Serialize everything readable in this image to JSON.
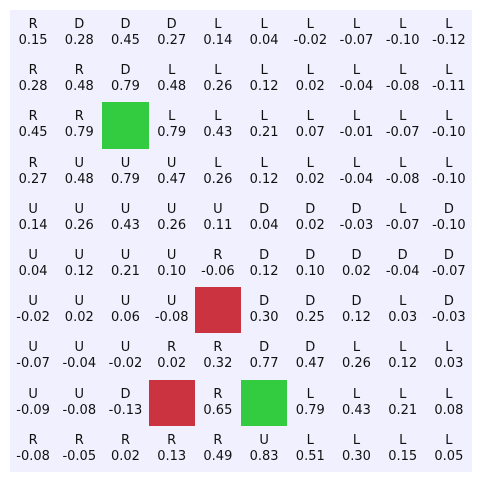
{
  "colors": {
    "background": "#f0f0fe",
    "goal": "#33cc40",
    "hazard": "#cc3340",
    "text": "#111111"
  },
  "grid": {
    "rows": 10,
    "cols": 10,
    "cells": [
      [
        {
          "a": "R",
          "v": "0.15"
        },
        {
          "a": "D",
          "v": "0.28"
        },
        {
          "a": "D",
          "v": "0.45"
        },
        {
          "a": "D",
          "v": "0.27"
        },
        {
          "a": "L",
          "v": "0.14"
        },
        {
          "a": "L",
          "v": "0.04"
        },
        {
          "a": "L",
          "v": "-0.02"
        },
        {
          "a": "L",
          "v": "-0.07"
        },
        {
          "a": "L",
          "v": "-0.10"
        },
        {
          "a": "L",
          "v": "-0.12"
        }
      ],
      [
        {
          "a": "R",
          "v": "0.28"
        },
        {
          "a": "R",
          "v": "0.48"
        },
        {
          "a": "D",
          "v": "0.79"
        },
        {
          "a": "L",
          "v": "0.48"
        },
        {
          "a": "L",
          "v": "0.26"
        },
        {
          "a": "L",
          "v": "0.12"
        },
        {
          "a": "L",
          "v": "0.02"
        },
        {
          "a": "L",
          "v": "-0.04"
        },
        {
          "a": "L",
          "v": "-0.08"
        },
        {
          "a": "L",
          "v": "-0.11"
        }
      ],
      [
        {
          "a": "R",
          "v": "0.45"
        },
        {
          "a": "R",
          "v": "0.79"
        },
        {
          "type": "goal"
        },
        {
          "a": "L",
          "v": "0.79"
        },
        {
          "a": "L",
          "v": "0.43"
        },
        {
          "a": "L",
          "v": "0.21"
        },
        {
          "a": "L",
          "v": "0.07"
        },
        {
          "a": "L",
          "v": "-0.01"
        },
        {
          "a": "L",
          "v": "-0.07"
        },
        {
          "a": "L",
          "v": "-0.10"
        }
      ],
      [
        {
          "a": "R",
          "v": "0.27"
        },
        {
          "a": "U",
          "v": "0.48"
        },
        {
          "a": "U",
          "v": "0.79"
        },
        {
          "a": "U",
          "v": "0.47"
        },
        {
          "a": "L",
          "v": "0.26"
        },
        {
          "a": "L",
          "v": "0.12"
        },
        {
          "a": "L",
          "v": "0.02"
        },
        {
          "a": "L",
          "v": "-0.04"
        },
        {
          "a": "L",
          "v": "-0.08"
        },
        {
          "a": "L",
          "v": "-0.10"
        }
      ],
      [
        {
          "a": "U",
          "v": "0.14"
        },
        {
          "a": "U",
          "v": "0.26"
        },
        {
          "a": "U",
          "v": "0.43"
        },
        {
          "a": "U",
          "v": "0.26"
        },
        {
          "a": "U",
          "v": "0.11"
        },
        {
          "a": "D",
          "v": "0.04"
        },
        {
          "a": "D",
          "v": "0.02"
        },
        {
          "a": "D",
          "v": "-0.03"
        },
        {
          "a": "L",
          "v": "-0.07"
        },
        {
          "a": "D",
          "v": "-0.10"
        }
      ],
      [
        {
          "a": "U",
          "v": "0.04"
        },
        {
          "a": "U",
          "v": "0.12"
        },
        {
          "a": "U",
          "v": "0.21"
        },
        {
          "a": "U",
          "v": "0.10"
        },
        {
          "a": "R",
          "v": "-0.06"
        },
        {
          "a": "D",
          "v": "0.12"
        },
        {
          "a": "D",
          "v": "0.10"
        },
        {
          "a": "D",
          "v": "0.02"
        },
        {
          "a": "D",
          "v": "-0.04"
        },
        {
          "a": "D",
          "v": "-0.07"
        }
      ],
      [
        {
          "a": "U",
          "v": "-0.02"
        },
        {
          "a": "U",
          "v": "0.02"
        },
        {
          "a": "U",
          "v": "0.06"
        },
        {
          "a": "U",
          "v": "-0.08"
        },
        {
          "type": "hazard"
        },
        {
          "a": "D",
          "v": "0.30"
        },
        {
          "a": "D",
          "v": "0.25"
        },
        {
          "a": "D",
          "v": "0.12"
        },
        {
          "a": "L",
          "v": "0.03"
        },
        {
          "a": "D",
          "v": "-0.03"
        }
      ],
      [
        {
          "a": "U",
          "v": "-0.07"
        },
        {
          "a": "U",
          "v": "-0.04"
        },
        {
          "a": "U",
          "v": "-0.02"
        },
        {
          "a": "R",
          "v": "0.02"
        },
        {
          "a": "R",
          "v": "0.32"
        },
        {
          "a": "D",
          "v": "0.77"
        },
        {
          "a": "D",
          "v": "0.47"
        },
        {
          "a": "L",
          "v": "0.26"
        },
        {
          "a": "L",
          "v": "0.12"
        },
        {
          "a": "L",
          "v": "0.03"
        }
      ],
      [
        {
          "a": "U",
          "v": "-0.09"
        },
        {
          "a": "U",
          "v": "-0.08"
        },
        {
          "a": "D",
          "v": "-0.13"
        },
        {
          "type": "hazard"
        },
        {
          "a": "R",
          "v": "0.65"
        },
        {
          "type": "goal"
        },
        {
          "a": "L",
          "v": "0.79"
        },
        {
          "a": "L",
          "v": "0.43"
        },
        {
          "a": "L",
          "v": "0.21"
        },
        {
          "a": "L",
          "v": "0.08"
        }
      ],
      [
        {
          "a": "R",
          "v": "-0.08"
        },
        {
          "a": "R",
          "v": "-0.05"
        },
        {
          "a": "R",
          "v": "0.02"
        },
        {
          "a": "R",
          "v": "0.13"
        },
        {
          "a": "R",
          "v": "0.49"
        },
        {
          "a": "U",
          "v": "0.83"
        },
        {
          "a": "L",
          "v": "0.51"
        },
        {
          "a": "L",
          "v": "0.30"
        },
        {
          "a": "L",
          "v": "0.15"
        },
        {
          "a": "L",
          "v": "0.05"
        }
      ]
    ]
  }
}
